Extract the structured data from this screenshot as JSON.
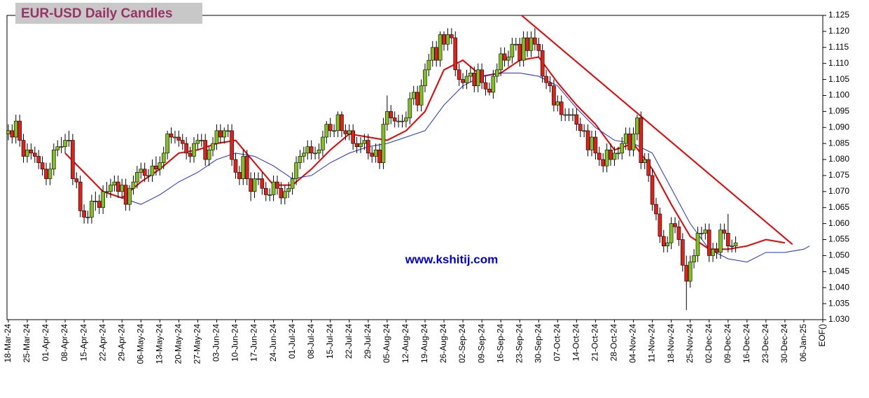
{
  "chart_data": {
    "type": "candlestick",
    "title": "EUR-USD Daily  Candles",
    "watermark": "www.kshitij.com",
    "categories": [
      "18-Mar-24",
      "25-Mar-24",
      "01-Apr-24",
      "08-Apr-24",
      "15-Apr-24",
      "22-Apr-24",
      "29-Apr-24",
      "06-May-24",
      "13-May-24",
      "20-May-24",
      "27-May-24",
      "03-Jun-24",
      "10-Jun-24",
      "17-Jun-24",
      "24-Jun-24",
      "01-Jul-24",
      "08-Jul-24",
      "15-Jul-24",
      "22-Jul-24",
      "29-Jul-24",
      "05-Aug-24",
      "12-Aug-24",
      "19-Aug-24",
      "26-Aug-24",
      "02-Sep-24",
      "09-Sep-24",
      "16-Sep-24",
      "23-Sep-24",
      "30-Sep-24",
      "07-Oct-24",
      "14-Oct-24",
      "21-Oct-24",
      "28-Oct-24",
      "04-Nov-24",
      "11-Nov-24",
      "18-Nov-24",
      "25-Nov-24",
      "02-Dec-24",
      "09-Dec-24",
      "16-Dec-24",
      "23-Dec-24",
      "30-Dec-24",
      "06-Jan-25",
      "EOF()"
    ],
    "xlim": [
      -0.07,
      43
    ],
    "ylim": [
      1.03,
      1.125
    ],
    "yticks": [
      {
        "value": 1.03,
        "label": "1.030"
      },
      {
        "value": 1.035,
        "label": "1.035"
      },
      {
        "value": 1.04,
        "label": "1.040"
      },
      {
        "value": 1.045,
        "label": "1.045"
      },
      {
        "value": 1.05,
        "label": "1.050"
      },
      {
        "value": 1.055,
        "label": "1.055"
      },
      {
        "value": 1.06,
        "label": "1.060"
      },
      {
        "value": 1.065,
        "label": "1.065"
      },
      {
        "value": 1.07,
        "label": "1.070"
      },
      {
        "value": 1.075,
        "label": "1.075"
      },
      {
        "value": 1.08,
        "label": "1.080"
      },
      {
        "value": 1.085,
        "label": "1.085"
      },
      {
        "value": 1.09,
        "label": "1.090"
      },
      {
        "value": 1.095,
        "label": "1.095"
      },
      {
        "value": 1.1,
        "label": "1.100"
      },
      {
        "value": 1.105,
        "label": "1.105"
      },
      {
        "value": 1.11,
        "label": "1.110"
      },
      {
        "value": 1.115,
        "label": "1.115"
      },
      {
        "value": 1.12,
        "label": "1.120"
      },
      {
        "value": 1.125,
        "label": "1.125"
      }
    ],
    "up_color": "#7fbf1f",
    "down_color": "#e0201a",
    "open": [
      1.088,
      1.089,
      1.087,
      1.092,
      1.086,
      1.081,
      1.083,
      1.082,
      1.081,
      1.079,
      1.077,
      1.074,
      1.077,
      1.083,
      1.084,
      1.084,
      1.086,
      1.086,
      1.074,
      1.073,
      1.064,
      1.062,
      1.062,
      1.067,
      1.067,
      1.065,
      1.07,
      1.07,
      1.072,
      1.073,
      1.07,
      1.072,
      1.066,
      1.071,
      1.073,
      1.076,
      1.077,
      1.075,
      1.075,
      1.078,
      1.077,
      1.079,
      1.082,
      1.088,
      1.087,
      1.087,
      1.086,
      1.085,
      1.082,
      1.081,
      1.085,
      1.086,
      1.086,
      1.08,
      1.083,
      1.085,
      1.089,
      1.087,
      1.089,
      1.089,
      1.08,
      1.076,
      1.074,
      1.081,
      1.074,
      1.07,
      1.074,
      1.074,
      1.071,
      1.069,
      1.069,
      1.073,
      1.071,
      1.068,
      1.07,
      1.071,
      1.074,
      1.079,
      1.081,
      1.082,
      1.084,
      1.082,
      1.082,
      1.083,
      1.087,
      1.091,
      1.089,
      1.089,
      1.094,
      1.089,
      1.088,
      1.089,
      1.085,
      1.084,
      1.085,
      1.086,
      1.082,
      1.081,
      1.083,
      1.079,
      1.091,
      1.095,
      1.093,
      1.092,
      1.092,
      1.092,
      1.093,
      1.099,
      1.101,
      1.097,
      1.103,
      1.108,
      1.111,
      1.115,
      1.111,
      1.119,
      1.116,
      1.119,
      1.118,
      1.108,
      1.105,
      1.104,
      1.106,
      1.107,
      1.103,
      1.108,
      1.104,
      1.102,
      1.101,
      1.106,
      1.108,
      1.113,
      1.111,
      1.112,
      1.116,
      1.116,
      1.111,
      1.118,
      1.114,
      1.118,
      1.116,
      1.114,
      1.106,
      1.104,
      1.103,
      1.097,
      1.098,
      1.094,
      1.094,
      1.094,
      1.094,
      1.091,
      1.089,
      1.089,
      1.083,
      1.087,
      1.082,
      1.08,
      1.078,
      1.083,
      1.08,
      1.082,
      1.082,
      1.085,
      1.088,
      1.083,
      1.088,
      1.093,
      1.079,
      1.08,
      1.075,
      1.066,
      1.063,
      1.056,
      1.053,
      1.054,
      1.06,
      1.059,
      1.055,
      1.047,
      1.042,
      1.048,
      1.05,
      1.057,
      1.057,
      1.058,
      1.05,
      1.052,
      1.051,
      1.058,
      1.057,
      1.053,
      1.053
    ],
    "high": [
      1.091,
      1.091,
      1.094,
      1.094,
      1.088,
      1.085,
      1.085,
      1.084,
      1.083,
      1.081,
      1.079,
      1.079,
      1.085,
      1.086,
      1.087,
      1.088,
      1.089,
      1.088,
      1.076,
      1.075,
      1.066,
      1.064,
      1.069,
      1.07,
      1.069,
      1.072,
      1.073,
      1.074,
      1.075,
      1.075,
      1.074,
      1.074,
      1.072,
      1.075,
      1.078,
      1.079,
      1.079,
      1.077,
      1.08,
      1.081,
      1.081,
      1.084,
      1.089,
      1.09,
      1.089,
      1.089,
      1.088,
      1.087,
      1.084,
      1.087,
      1.088,
      1.088,
      1.088,
      1.084,
      1.087,
      1.091,
      1.091,
      1.09,
      1.091,
      1.091,
      1.082,
      1.078,
      1.083,
      1.083,
      1.076,
      1.076,
      1.076,
      1.076,
      1.073,
      1.071,
      1.075,
      1.075,
      1.073,
      1.072,
      1.073,
      1.076,
      1.081,
      1.083,
      1.084,
      1.086,
      1.086,
      1.084,
      1.085,
      1.089,
      1.092,
      1.093,
      1.091,
      1.095,
      1.095,
      1.091,
      1.091,
      1.091,
      1.087,
      1.087,
      1.088,
      1.088,
      1.084,
      1.085,
      1.085,
      1.093,
      1.1,
      1.097,
      1.095,
      1.094,
      1.094,
      1.095,
      1.101,
      1.103,
      1.103,
      1.105,
      1.11,
      1.113,
      1.117,
      1.117,
      1.12,
      1.12,
      1.121,
      1.121,
      1.12,
      1.11,
      1.107,
      1.108,
      1.109,
      1.109,
      1.11,
      1.11,
      1.106,
      1.104,
      1.108,
      1.11,
      1.115,
      1.115,
      1.114,
      1.118,
      1.118,
      1.118,
      1.12,
      1.12,
      1.12,
      1.121,
      1.118,
      1.116,
      1.108,
      1.106,
      1.105,
      1.1,
      1.1,
      1.096,
      1.096,
      1.096,
      1.096,
      1.093,
      1.091,
      1.091,
      1.089,
      1.089,
      1.084,
      1.082,
      1.085,
      1.085,
      1.084,
      1.084,
      1.087,
      1.09,
      1.09,
      1.09,
      1.094,
      1.095,
      1.082,
      1.082,
      1.077,
      1.068,
      1.065,
      1.058,
      1.056,
      1.062,
      1.062,
      1.061,
      1.057,
      1.05,
      1.05,
      1.052,
      1.059,
      1.059,
      1.06,
      1.06,
      1.054,
      1.054,
      1.06,
      1.06,
      1.063,
      1.055,
      1.056
    ],
    "low": [
      1.086,
      1.085,
      1.085,
      1.084,
      1.079,
      1.079,
      1.08,
      1.079,
      1.077,
      1.075,
      1.072,
      1.072,
      1.075,
      1.081,
      1.082,
      1.082,
      1.084,
      1.072,
      1.071,
      1.062,
      1.06,
      1.06,
      1.06,
      1.064,
      1.063,
      1.063,
      1.068,
      1.068,
      1.07,
      1.068,
      1.068,
      1.064,
      1.064,
      1.069,
      1.071,
      1.074,
      1.073,
      1.073,
      1.073,
      1.075,
      1.075,
      1.077,
      1.08,
      1.085,
      1.085,
      1.084,
      1.083,
      1.08,
      1.079,
      1.079,
      1.083,
      1.084,
      1.078,
      1.078,
      1.081,
      1.083,
      1.085,
      1.085,
      1.087,
      1.078,
      1.074,
      1.072,
      1.072,
      1.072,
      1.067,
      1.068,
      1.072,
      1.069,
      1.067,
      1.067,
      1.067,
      1.069,
      1.066,
      1.066,
      1.068,
      1.069,
      1.072,
      1.077,
      1.079,
      1.08,
      1.08,
      1.08,
      1.08,
      1.081,
      1.085,
      1.087,
      1.087,
      1.087,
      1.087,
      1.086,
      1.086,
      1.083,
      1.082,
      1.082,
      1.083,
      1.08,
      1.079,
      1.079,
      1.077,
      1.077,
      1.089,
      1.091,
      1.09,
      1.09,
      1.09,
      1.09,
      1.091,
      1.097,
      1.095,
      1.095,
      1.101,
      1.106,
      1.109,
      1.109,
      1.109,
      1.114,
      1.114,
      1.116,
      1.106,
      1.103,
      1.102,
      1.102,
      1.104,
      1.101,
      1.101,
      1.102,
      1.1,
      1.1,
      1.099,
      1.104,
      1.106,
      1.109,
      1.109,
      1.11,
      1.114,
      1.109,
      1.109,
      1.112,
      1.112,
      1.114,
      1.112,
      1.104,
      1.102,
      1.101,
      1.095,
      1.095,
      1.092,
      1.092,
      1.092,
      1.092,
      1.089,
      1.087,
      1.087,
      1.081,
      1.081,
      1.08,
      1.078,
      1.076,
      1.076,
      1.078,
      1.078,
      1.08,
      1.08,
      1.083,
      1.081,
      1.081,
      1.086,
      1.077,
      1.077,
      1.073,
      1.064,
      1.061,
      1.054,
      1.051,
      1.051,
      1.052,
      1.057,
      1.053,
      1.045,
      1.033,
      1.04,
      1.046,
      1.048,
      1.055,
      1.055,
      1.048,
      1.048,
      1.049,
      1.049,
      1.055,
      1.051,
      1.051,
      1.051
    ],
    "close": [
      1.089,
      1.087,
      1.092,
      1.086,
      1.081,
      1.083,
      1.082,
      1.081,
      1.079,
      1.077,
      1.074,
      1.077,
      1.083,
      1.084,
      1.084,
      1.086,
      1.086,
      1.074,
      1.073,
      1.064,
      1.062,
      1.062,
      1.067,
      1.067,
      1.065,
      1.07,
      1.07,
      1.072,
      1.073,
      1.07,
      1.072,
      1.066,
      1.071,
      1.073,
      1.076,
      1.077,
      1.075,
      1.075,
      1.078,
      1.077,
      1.079,
      1.082,
      1.088,
      1.087,
      1.087,
      1.086,
      1.085,
      1.082,
      1.081,
      1.085,
      1.086,
      1.086,
      1.08,
      1.083,
      1.085,
      1.089,
      1.087,
      1.089,
      1.089,
      1.08,
      1.076,
      1.074,
      1.081,
      1.074,
      1.07,
      1.074,
      1.074,
      1.071,
      1.069,
      1.069,
      1.073,
      1.071,
      1.068,
      1.07,
      1.071,
      1.074,
      1.079,
      1.081,
      1.082,
      1.084,
      1.082,
      1.082,
      1.083,
      1.087,
      1.091,
      1.089,
      1.089,
      1.094,
      1.089,
      1.088,
      1.089,
      1.085,
      1.084,
      1.085,
      1.086,
      1.082,
      1.081,
      1.083,
      1.079,
      1.091,
      1.095,
      1.093,
      1.092,
      1.092,
      1.092,
      1.093,
      1.099,
      1.101,
      1.097,
      1.103,
      1.108,
      1.111,
      1.115,
      1.111,
      1.119,
      1.116,
      1.119,
      1.118,
      1.108,
      1.105,
      1.104,
      1.106,
      1.107,
      1.103,
      1.108,
      1.104,
      1.102,
      1.101,
      1.106,
      1.108,
      1.113,
      1.111,
      1.112,
      1.116,
      1.116,
      1.111,
      1.118,
      1.114,
      1.118,
      1.116,
      1.114,
      1.106,
      1.104,
      1.103,
      1.097,
      1.098,
      1.094,
      1.094,
      1.094,
      1.094,
      1.091,
      1.089,
      1.089,
      1.083,
      1.087,
      1.082,
      1.08,
      1.078,
      1.083,
      1.08,
      1.082,
      1.082,
      1.085,
      1.088,
      1.083,
      1.088,
      1.093,
      1.079,
      1.08,
      1.075,
      1.066,
      1.063,
      1.056,
      1.053,
      1.054,
      1.06,
      1.059,
      1.055,
      1.047,
      1.042,
      1.048,
      1.05,
      1.057,
      1.057,
      1.058,
      1.05,
      1.052,
      1.051,
      1.058,
      1.057,
      1.053,
      1.053,
      1.054
    ],
    "lines": [
      {
        "color": "#e60000",
        "x": [
          3,
          4,
          5,
          6,
          7,
          8,
          9,
          10,
          11,
          12,
          13,
          14,
          15,
          16,
          17,
          18,
          19,
          20,
          21,
          22,
          23,
          24,
          25,
          26,
          27,
          28,
          29,
          30,
          31,
          32,
          33,
          34,
          35,
          36,
          37,
          38,
          39,
          40,
          41
        ],
        "values": [
          1.082,
          1.076,
          1.07,
          1.068,
          1.073,
          1.077,
          1.082,
          1.083,
          1.085,
          1.086,
          1.079,
          1.072,
          1.072,
          1.077,
          1.083,
          1.088,
          1.087,
          1.086,
          1.089,
          1.095,
          1.108,
          1.111,
          1.106,
          1.107,
          1.111,
          1.112,
          1.104,
          1.097,
          1.091,
          1.083,
          1.085,
          1.077,
          1.066,
          1.056,
          1.052,
          1.052,
          1.053,
          1.055,
          1.054
        ]
      },
      {
        "color": "#1f2fd6",
        "x": [
          6,
          7,
          8,
          9,
          10,
          11,
          12,
          13,
          14,
          15,
          16,
          17,
          18,
          19,
          20,
          21,
          22,
          23,
          24,
          25,
          26,
          27,
          28,
          29,
          30,
          31,
          32,
          33,
          34,
          35,
          36,
          37,
          38,
          39,
          40,
          41,
          42,
          42.3
        ],
        "values": [
          1.068,
          1.066,
          1.069,
          1.073,
          1.076,
          1.08,
          1.082,
          1.081,
          1.078,
          1.074,
          1.075,
          1.079,
          1.082,
          1.084,
          1.085,
          1.087,
          1.089,
          1.097,
          1.103,
          1.106,
          1.107,
          1.107,
          1.106,
          1.103,
          1.096,
          1.09,
          1.086,
          1.085,
          1.082,
          1.071,
          1.06,
          1.052,
          1.049,
          1.048,
          1.051,
          1.051,
          1.052,
          1.053
        ]
      }
    ],
    "trendline": {
      "color": "#e60000",
      "x": [
        27.1,
        41.4
      ],
      "values": [
        1.125,
        1.0535
      ]
    }
  }
}
